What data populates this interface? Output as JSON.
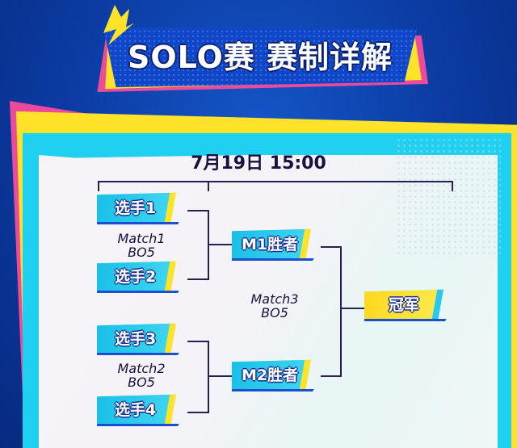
{
  "header": {
    "title": "SOLO赛 赛制详解"
  },
  "schedule": {
    "date_time": "7月19日 15:00"
  },
  "bracket": {
    "players": [
      "选手1",
      "选手2",
      "选手3",
      "选手4"
    ],
    "matches": [
      {
        "name": "Match1",
        "format": "BO5"
      },
      {
        "name": "Match2",
        "format": "BO5"
      },
      {
        "name": "Match3",
        "format": "BO5"
      }
    ],
    "winners": [
      "M1胜者",
      "M2胜者"
    ],
    "champion": "冠军"
  },
  "colors": {
    "background": "#0b3aa0",
    "accent_cyan": "#1fd0f0",
    "accent_yellow": "#ffe22a",
    "accent_pink": "#ec4a9a"
  }
}
